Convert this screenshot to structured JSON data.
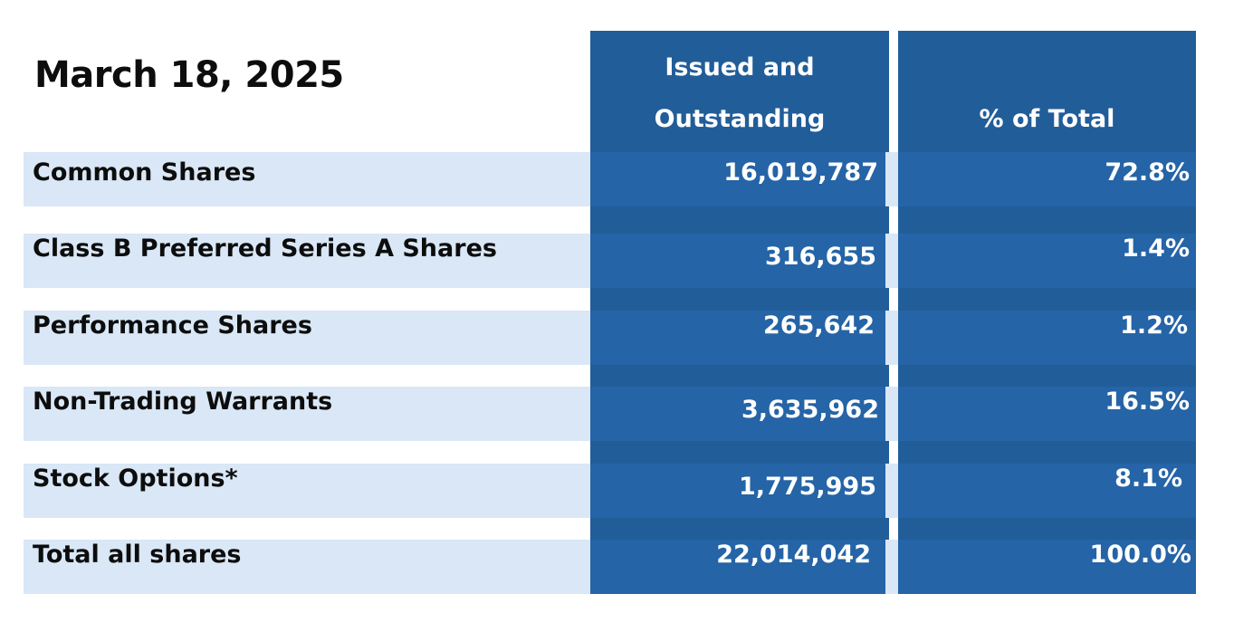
{
  "title": "March 18, 2025",
  "headers": {
    "issued_line1": "Issued and",
    "issued_line2": "Outstanding",
    "percent": "% of Total"
  },
  "rows": [
    {
      "label": "Common Shares",
      "issued": "16,019,787",
      "percent": "72.8%"
    },
    {
      "label": "Class B Preferred Series A Shares",
      "issued": "316,655",
      "percent": "1.4%"
    },
    {
      "label": "Performance Shares",
      "issued": "265,642",
      "percent": "1.2%"
    },
    {
      "label": "Non-Trading Warrants",
      "issued": "3,635,962",
      "percent": "16.5%"
    },
    {
      "label": "Stock Options*",
      "issued": "1,775,995",
      "percent": "8.1%"
    },
    {
      "label": "Total all shares",
      "issued": "22,014,042",
      "percent": "100.0%"
    }
  ],
  "colors": {
    "header_blue": "#215d99",
    "row_blue": "#2564a6",
    "label_bg": "#d9e7f6"
  }
}
